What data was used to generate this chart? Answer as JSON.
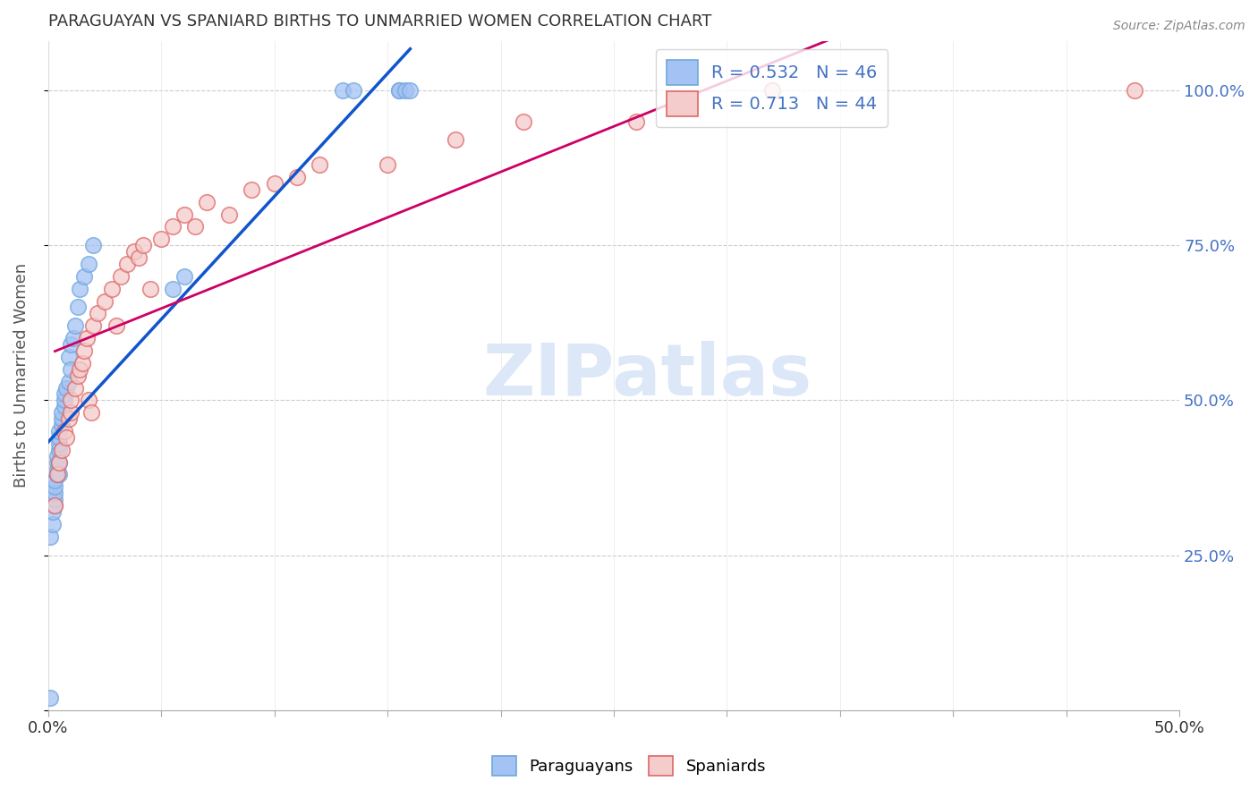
{
  "title": "PARAGUAYAN VS SPANIARD BIRTHS TO UNMARRIED WOMEN CORRELATION CHART",
  "source": "Source: ZipAtlas.com",
  "ylabel": "Births to Unmarried Women",
  "xlim": [
    0.0,
    0.5
  ],
  "ylim": [
    0.0,
    1.08
  ],
  "blue_color": "#a4c2f4",
  "blue_edge_color": "#6fa8dc",
  "pink_color": "#f4cccc",
  "pink_edge_color": "#e06666",
  "blue_line_color": "#1155cc",
  "pink_line_color": "#cc0066",
  "legend_blue_r": "0.532",
  "legend_blue_n": "46",
  "legend_pink_r": "0.713",
  "legend_pink_n": "44",
  "watermark_text": "ZIPatlas",
  "blue_x": [
    0.001,
    0.001,
    0.002,
    0.002,
    0.003,
    0.003,
    0.003,
    0.003,
    0.003,
    0.004,
    0.004,
    0.004,
    0.004,
    0.004,
    0.005,
    0.005,
    0.005,
    0.005,
    0.005,
    0.005,
    0.006,
    0.006,
    0.006,
    0.007,
    0.007,
    0.007,
    0.008,
    0.009,
    0.009,
    0.01,
    0.01,
    0.011,
    0.012,
    0.013,
    0.014,
    0.016,
    0.018,
    0.02,
    0.055,
    0.06,
    0.13,
    0.135,
    0.155,
    0.155,
    0.158,
    0.16
  ],
  "blue_y": [
    0.02,
    0.28,
    0.3,
    0.32,
    0.33,
    0.34,
    0.35,
    0.36,
    0.37,
    0.38,
    0.38,
    0.39,
    0.4,
    0.41,
    0.38,
    0.4,
    0.42,
    0.43,
    0.44,
    0.45,
    0.46,
    0.47,
    0.48,
    0.49,
    0.5,
    0.51,
    0.52,
    0.53,
    0.57,
    0.55,
    0.59,
    0.6,
    0.62,
    0.65,
    0.68,
    0.7,
    0.72,
    0.75,
    0.68,
    0.7,
    1.0,
    1.0,
    1.0,
    1.0,
    1.0,
    1.0
  ],
  "pink_x": [
    0.003,
    0.004,
    0.005,
    0.006,
    0.007,
    0.008,
    0.009,
    0.01,
    0.01,
    0.012,
    0.013,
    0.014,
    0.015,
    0.016,
    0.017,
    0.018,
    0.019,
    0.02,
    0.022,
    0.025,
    0.028,
    0.03,
    0.032,
    0.035,
    0.038,
    0.04,
    0.042,
    0.045,
    0.05,
    0.055,
    0.06,
    0.065,
    0.07,
    0.08,
    0.09,
    0.1,
    0.11,
    0.12,
    0.15,
    0.18,
    0.21,
    0.26,
    0.32,
    0.48
  ],
  "pink_y": [
    0.33,
    0.38,
    0.4,
    0.42,
    0.45,
    0.44,
    0.47,
    0.48,
    0.5,
    0.52,
    0.54,
    0.55,
    0.56,
    0.58,
    0.6,
    0.5,
    0.48,
    0.62,
    0.64,
    0.66,
    0.68,
    0.62,
    0.7,
    0.72,
    0.74,
    0.73,
    0.75,
    0.68,
    0.76,
    0.78,
    0.8,
    0.78,
    0.82,
    0.8,
    0.84,
    0.85,
    0.86,
    0.88,
    0.88,
    0.92,
    0.95,
    0.95,
    1.0,
    1.0
  ]
}
